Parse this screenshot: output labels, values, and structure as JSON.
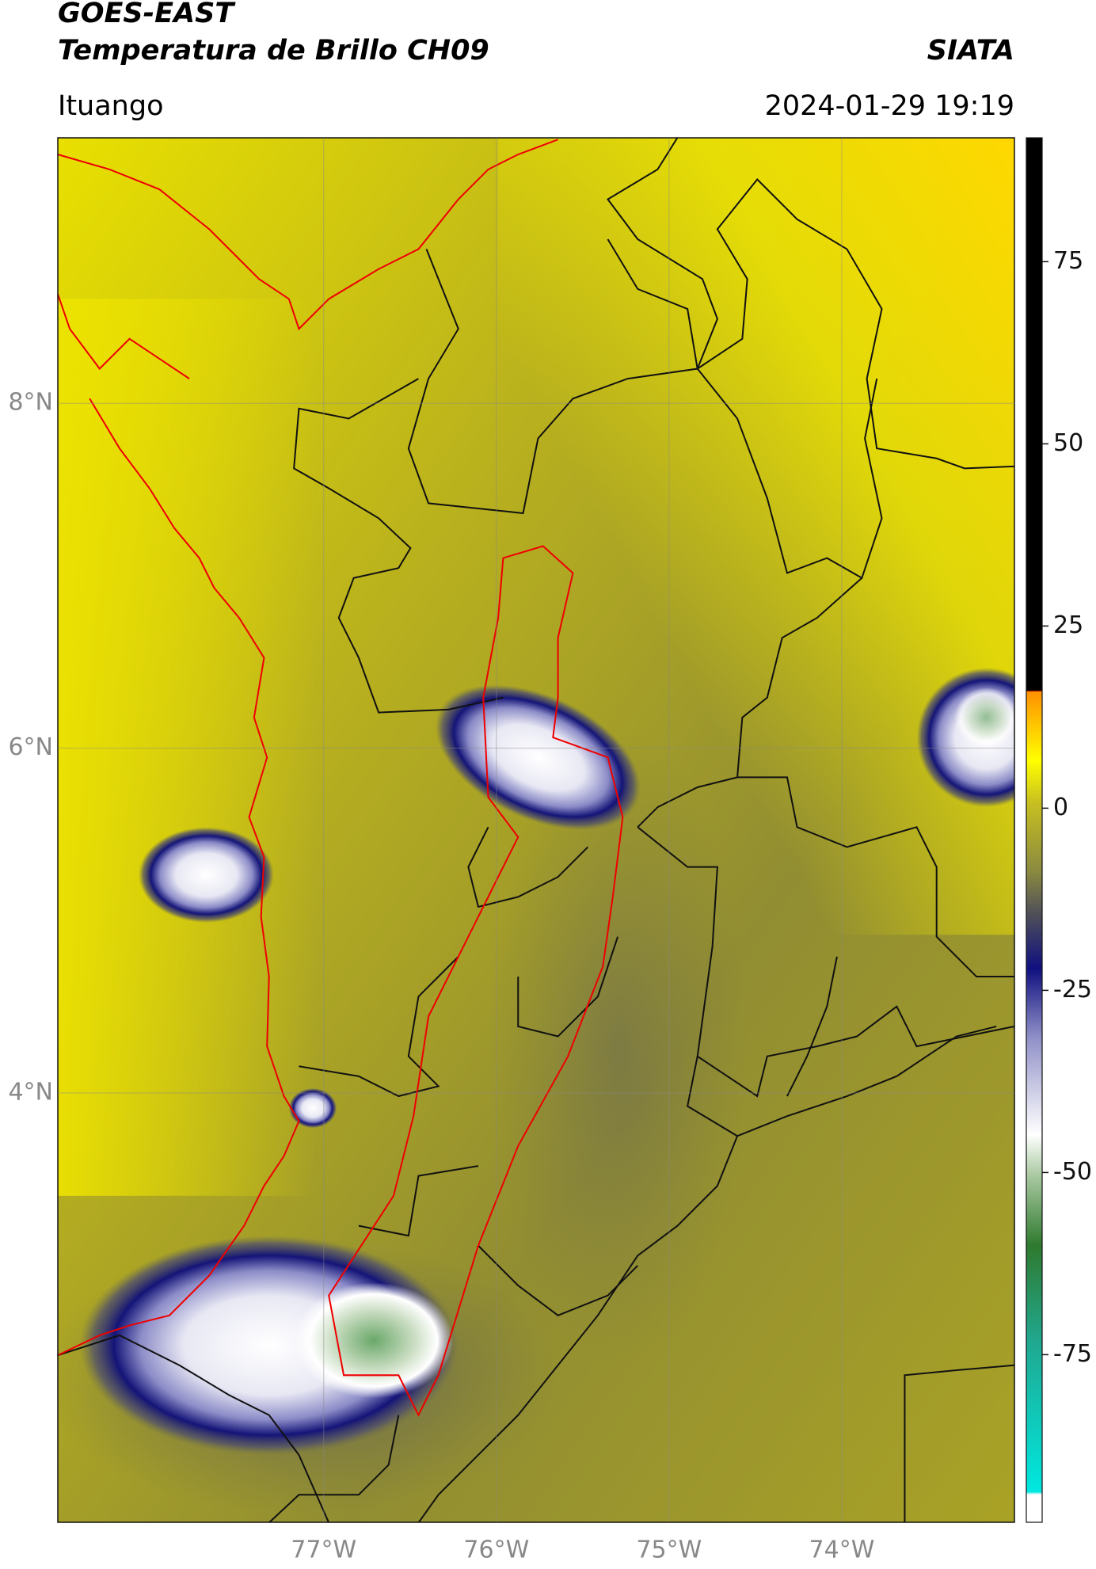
{
  "header": {
    "title": "GOES-EAST",
    "subtitle": "Temperatura de Brillo CH09",
    "source": "SIATA",
    "location": "Ituango",
    "datetime": "2024-01-29 19:19"
  },
  "map": {
    "xlim": [
      -78.54,
      -73.0
    ],
    "ylim": [
      1.51,
      9.54
    ],
    "xticks": [
      {
        "value": -77,
        "label": "77°W"
      },
      {
        "value": -76,
        "label": "76°W"
      },
      {
        "value": -75,
        "label": "75°W"
      },
      {
        "value": -74,
        "label": "74°W"
      }
    ],
    "yticks": [
      {
        "value": 8,
        "label": "8°N"
      },
      {
        "value": 6,
        "label": "6°N"
      },
      {
        "value": 4,
        "label": "4°N"
      }
    ],
    "grid": true
  },
  "colorbar": {
    "clim": [
      -98,
      92
    ],
    "ticks": [
      75,
      50,
      25,
      0,
      -25,
      -50,
      -75
    ]
  }
}
